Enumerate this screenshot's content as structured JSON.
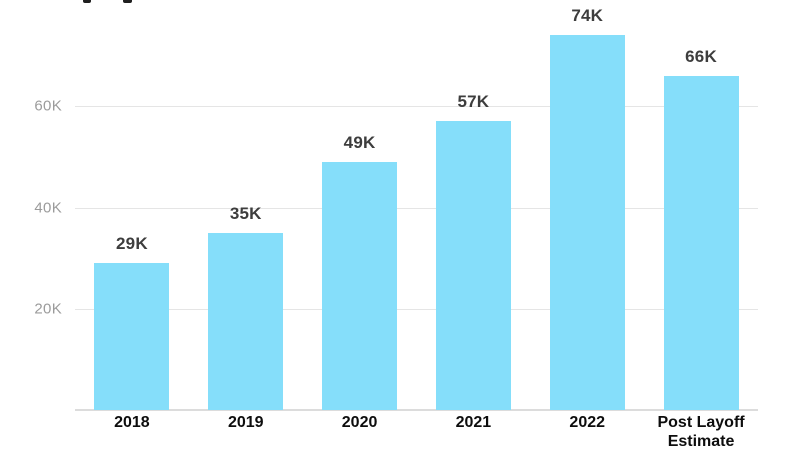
{
  "colors": {
    "background": "#ffffff",
    "bar_fill": "#85defa",
    "gridline": "#e5e5e5",
    "axis_line": "#dcdcdc",
    "y_tick_label": "#9b9b9b",
    "value_label": "#3d3d3d",
    "category_label": "#0d0d0d",
    "title_fragment": "#1f1f1f"
  },
  "chart_data": {
    "type": "bar",
    "categories": [
      "2018",
      "2019",
      "2020",
      "2021",
      "2022",
      "Post Layoff Estimate"
    ],
    "values": [
      29,
      35,
      49,
      57,
      74,
      66
    ],
    "value_labels": [
      "29K",
      "35K",
      "49K",
      "57K",
      "74K",
      "66K"
    ],
    "unit": "K",
    "title": "",
    "xlabel": "",
    "ylabel": "",
    "y_ticks": [
      {
        "value": 20,
        "label": "20K"
      },
      {
        "value": 40,
        "label": "40K"
      },
      {
        "value": 60,
        "label": "60K"
      }
    ],
    "ylim": [
      0,
      81
    ],
    "grid": true,
    "legend": false,
    "annotations": []
  }
}
